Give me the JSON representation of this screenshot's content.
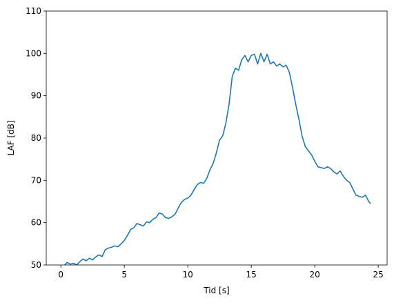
{
  "chart_data": {
    "type": "line",
    "x_label": "Tid [s]",
    "y_label": "LAF [dB]",
    "xlim": [
      -1.15,
      25.7
    ],
    "ylim": [
      50,
      110
    ],
    "xticks": [
      0,
      5,
      10,
      15,
      20,
      25
    ],
    "yticks": [
      50,
      60,
      70,
      80,
      90,
      100,
      110
    ],
    "series": [
      {
        "color": "#1f77b4",
        "x": [
          0.25,
          0.5,
          0.75,
          1,
          1.25,
          1.5,
          1.75,
          2,
          2.25,
          2.5,
          2.75,
          3,
          3.25,
          3.5,
          3.75,
          4,
          4.25,
          4.5,
          4.75,
          5,
          5.25,
          5.5,
          5.75,
          6,
          6.25,
          6.5,
          6.75,
          7,
          7.25,
          7.5,
          7.75,
          8,
          8.25,
          8.5,
          8.75,
          9,
          9.25,
          9.5,
          9.75,
          10,
          10.25,
          10.5,
          10.75,
          11,
          11.25,
          11.5,
          11.75,
          12,
          12.25,
          12.5,
          12.75,
          13,
          13.25,
          13.5,
          13.75,
          14,
          14.25,
          14.5,
          14.75,
          15,
          15.25,
          15.5,
          15.75,
          16,
          16.25,
          16.5,
          16.75,
          17,
          17.25,
          17.5,
          17.75,
          18,
          18.25,
          18.5,
          18.75,
          19,
          19.25,
          19.5,
          19.75,
          20,
          20.25,
          20.5,
          20.75,
          21,
          21.25,
          21.5,
          21.75,
          22,
          22.25,
          22.5,
          22.75,
          23,
          23.25,
          23.5,
          23.75,
          24,
          24.25,
          24.4
        ],
        "values": [
          49.8,
          50.6,
          50.2,
          50.4,
          50.0,
          50.8,
          51.4,
          51.0,
          51.6,
          51.2,
          51.9,
          52.4,
          52.0,
          53.6,
          54.0,
          54.2,
          54.5,
          54.3,
          55.0,
          55.8,
          57.0,
          58.4,
          58.8,
          59.8,
          59.5,
          59.2,
          60.2,
          60.0,
          60.8,
          61.2,
          62.3,
          62.0,
          61.2,
          61.0,
          61.4,
          62.0,
          63.5,
          64.8,
          65.5,
          65.8,
          66.5,
          67.8,
          69.0,
          69.5,
          69.3,
          70.5,
          72.5,
          74.0,
          76.5,
          79.5,
          80.5,
          83.5,
          88.0,
          94.5,
          96.5,
          96.0,
          98.5,
          99.5,
          98.0,
          99.5,
          99.8,
          97.5,
          100.0,
          98.0,
          99.8,
          97.5,
          98.0,
          97.0,
          97.5,
          96.8,
          97.2,
          95.5,
          92.0,
          88.0,
          84.5,
          80.5,
          78.0,
          77.0,
          76.0,
          74.5,
          73.2,
          73.0,
          72.8,
          73.2,
          72.8,
          72.0,
          71.5,
          72.2,
          71.0,
          70.0,
          69.5,
          68.0,
          66.5,
          66.2,
          66.0,
          66.5,
          65.0,
          64.5
        ]
      }
    ]
  }
}
